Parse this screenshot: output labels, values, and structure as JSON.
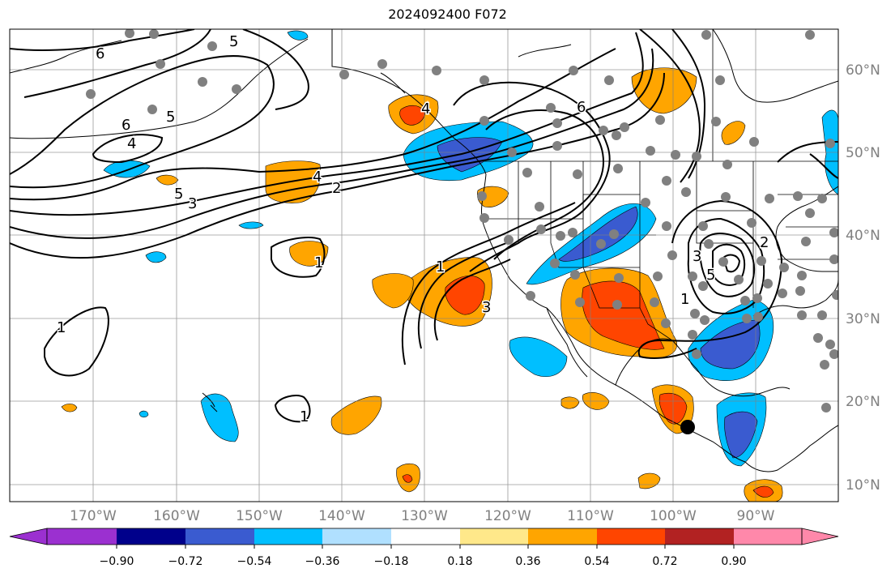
{
  "title": "2024092400 F072",
  "lon_labels": [
    "170°W",
    "160°W",
    "150°W",
    "140°W",
    "130°W",
    "120°W",
    "110°W",
    "100°W",
    "90°W"
  ],
  "lat_labels": [
    "60°N",
    "50°N",
    "40°N",
    "30°N",
    "20°N",
    "10°N"
  ],
  "colorbar": {
    "colors": [
      "#9b30d0",
      "#00008b",
      "#3a5bd0",
      "#00bfff",
      "#b0e0ff",
      "#ffffff",
      "#ffe88a",
      "#ffa500",
      "#ff4500",
      "#b22222",
      "#ff88aa"
    ],
    "ticks": [
      "−0.90",
      "−0.72",
      "−0.54",
      "−0.36",
      "−0.18",
      "0.18",
      "0.36",
      "0.54",
      "0.72",
      "0.90"
    ]
  },
  "contour_labels": {
    "c1": "6",
    "c2": "5",
    "c3": "6",
    "c4": "5",
    "c5": "4",
    "c6": "5",
    "c7": "3",
    "c8": "4",
    "c9": "2",
    "c10": "6",
    "c11": "1",
    "c12": "1",
    "c13": "3",
    "c14": "1",
    "c15": "1",
    "c16": "3",
    "c17": "5",
    "c18": "2",
    "c19": "1",
    "c20": "4"
  },
  "colors": {
    "warm1": "#ffa500",
    "warm2": "#ff4500",
    "cool1": "#00bfff",
    "cool2": "#3a5bd0",
    "station": "#808080"
  }
}
